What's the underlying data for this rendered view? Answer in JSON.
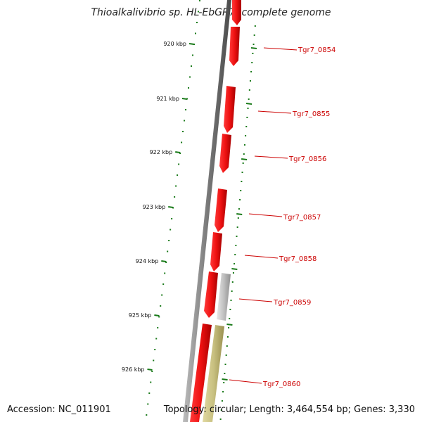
{
  "title": "Thioalkalivibrio sp. HL-EbGR7, complete genome",
  "accession": "Accession: NC_011901",
  "summary": "Topology: circular; Length: 3,464,554 bp; Genes: 3,330",
  "ticks": [
    "920 kbp",
    "921 kbp",
    "922 kbp",
    "923 kbp",
    "924 kbp",
    "925 kbp",
    "926 kbp"
  ],
  "genes": [
    {
      "label": "Tgr7_0854",
      "color": "#ee1111"
    },
    {
      "label": "Tgr7_0855",
      "color": "#ee1111"
    },
    {
      "label": "Tgr7_0856",
      "color": "#ee1111"
    },
    {
      "label": "Tgr7_0857",
      "color": "#ee1111"
    },
    {
      "label": "Tgr7_0858",
      "color": "#ee1111"
    },
    {
      "label": "Tgr7_0859",
      "color": "#b8b8b8"
    },
    {
      "label": "Tgr7_0860",
      "color": "#c8c080"
    }
  ],
  "colors": {
    "backbone": "#808080",
    "cds_forward": "#ee1111",
    "cds_reverse": "#b8b8b8",
    "gc_band": "#c8c080",
    "ticks": "#1a7a1a",
    "label": "#cc0000"
  }
}
